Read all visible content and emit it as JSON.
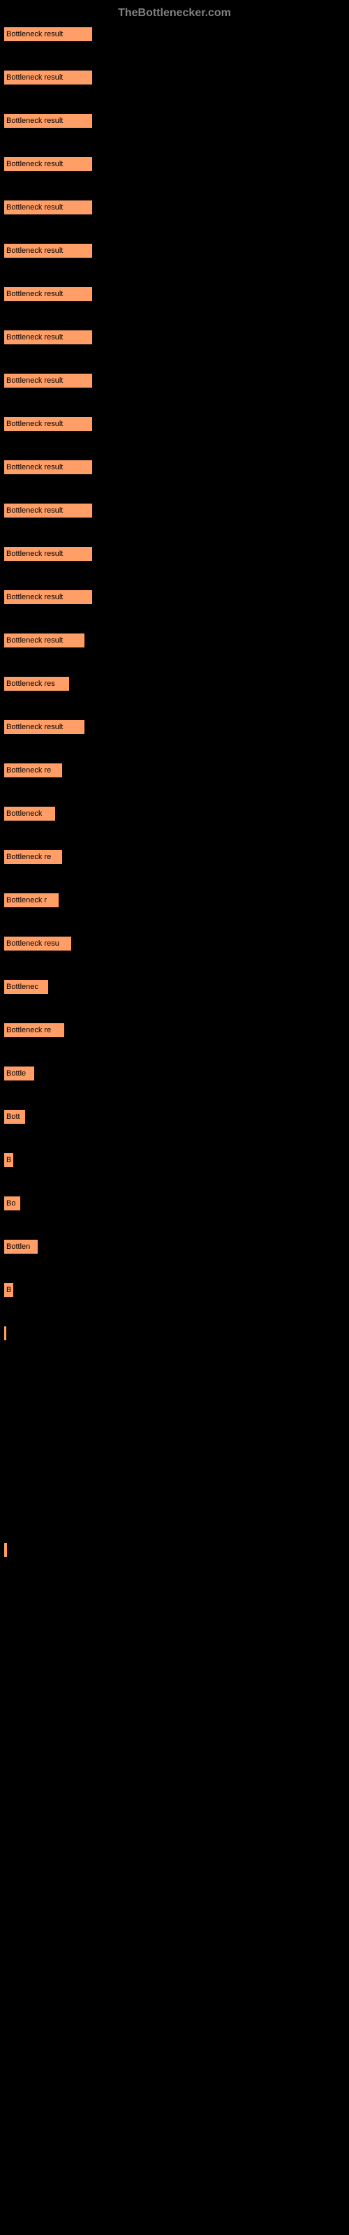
{
  "header": {
    "title": "TheBottlenecker.com"
  },
  "chart": {
    "type": "bar",
    "background_color": "#000000",
    "bar_color": "#ff9e66",
    "bar_border_color": "#000000",
    "text_color": "#000000",
    "label_color": "#cccccc",
    "label_fontsize": 11,
    "max_width": 500,
    "bars": [
      {
        "label": "",
        "text": "Bottleneck result",
        "width": 128
      },
      {
        "label": "",
        "text": "Bottleneck result",
        "width": 128
      },
      {
        "label": "",
        "text": "Bottleneck result",
        "width": 128
      },
      {
        "label": "",
        "text": "Bottleneck result",
        "width": 128
      },
      {
        "label": "",
        "text": "Bottleneck result",
        "width": 128
      },
      {
        "label": "",
        "text": "Bottleneck result",
        "width": 128
      },
      {
        "label": "",
        "text": "Bottleneck result",
        "width": 128
      },
      {
        "label": "",
        "text": "Bottleneck result",
        "width": 128
      },
      {
        "label": "",
        "text": "Bottleneck result",
        "width": 128
      },
      {
        "label": "",
        "text": "Bottleneck result",
        "width": 128
      },
      {
        "label": "",
        "text": "Bottleneck result",
        "width": 128
      },
      {
        "label": "",
        "text": "Bottleneck result",
        "width": 128
      },
      {
        "label": "",
        "text": "Bottleneck result",
        "width": 128
      },
      {
        "label": "",
        "text": "Bottleneck result",
        "width": 128
      },
      {
        "label": "",
        "text": "Bottleneck result",
        "width": 117
      },
      {
        "label": "",
        "text": "Bottleneck res",
        "width": 95
      },
      {
        "label": "",
        "text": "Bottleneck result",
        "width": 117
      },
      {
        "label": "",
        "text": "Bottleneck re",
        "width": 85
      },
      {
        "label": "",
        "text": "Bottleneck",
        "width": 75
      },
      {
        "label": "",
        "text": "Bottleneck re",
        "width": 85
      },
      {
        "label": "",
        "text": "Bottleneck r",
        "width": 80
      },
      {
        "label": "",
        "text": "Bottleneck resu",
        "width": 98
      },
      {
        "label": "",
        "text": "Bottlenec",
        "width": 65
      },
      {
        "label": "",
        "text": "Bottleneck re",
        "width": 88
      },
      {
        "label": "",
        "text": "Bottle",
        "width": 45
      },
      {
        "label": "",
        "text": "Bott",
        "width": 32
      },
      {
        "label": "",
        "text": "B",
        "width": 15
      },
      {
        "label": "",
        "text": "Bo",
        "width": 25
      },
      {
        "label": "",
        "text": "Bottlen",
        "width": 50
      },
      {
        "label": "",
        "text": "B",
        "width": 15
      },
      {
        "label": "",
        "text": "",
        "width": 4
      },
      {
        "label": "",
        "text": "",
        "width": 0
      },
      {
        "label": "",
        "text": "",
        "width": 0
      },
      {
        "label": "",
        "text": "",
        "width": 0
      },
      {
        "label": "",
        "text": "",
        "width": 0
      },
      {
        "label": "",
        "text": "",
        "width": 6
      }
    ]
  }
}
